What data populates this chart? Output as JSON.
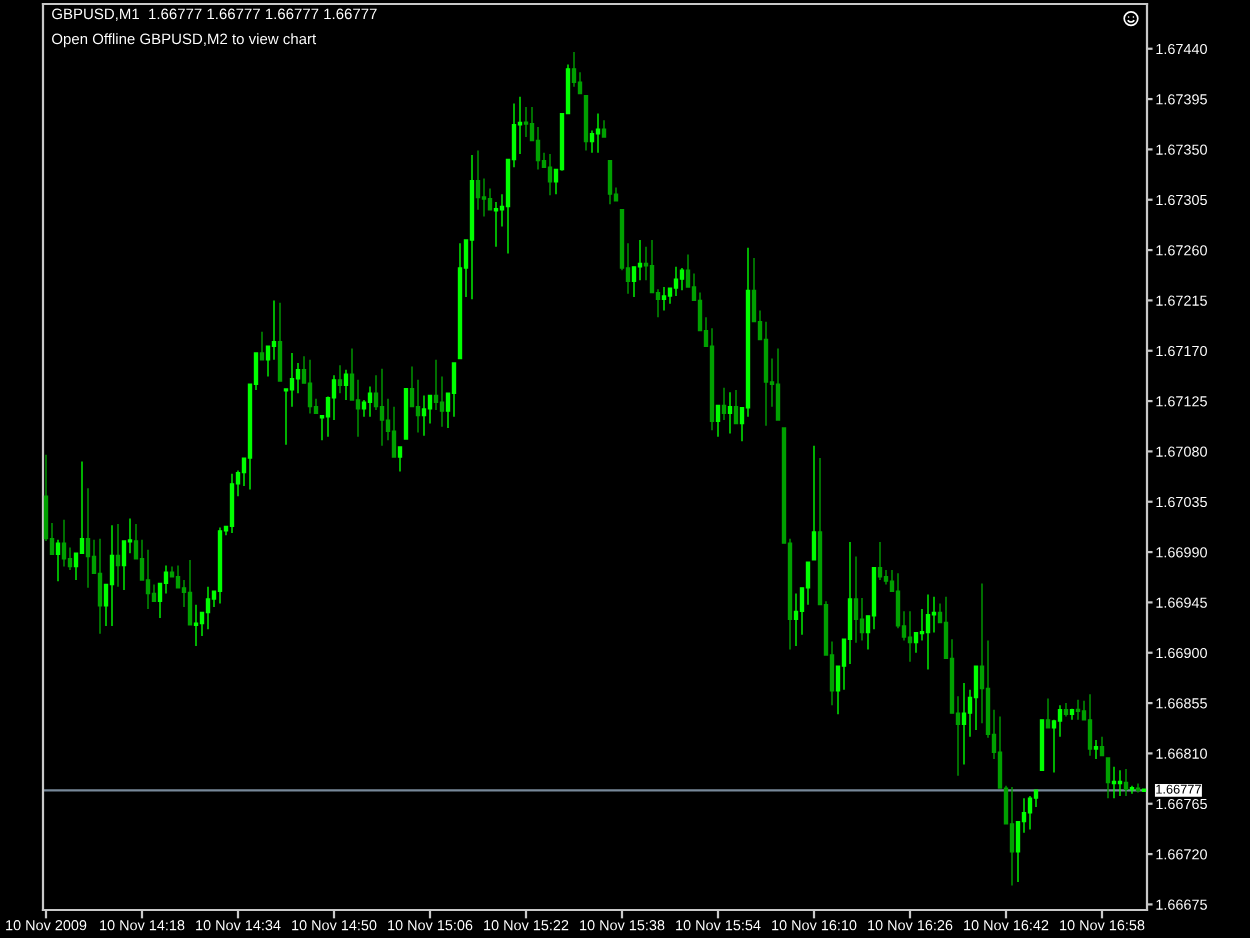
{
  "chart_data": {
    "type": "candlestick",
    "title": "GBPUSD,M1  1.66777 1.66777 1.66777 1.66777",
    "subtitle": "Open Offline GBPUSD,M2 to view chart",
    "categories": [
      "10 Nov 2009",
      null,
      null,
      null,
      null,
      null,
      null,
      null,
      null,
      null,
      null,
      null,
      null,
      null,
      null,
      null,
      "10 Nov 14:18",
      null,
      null,
      null,
      null,
      null,
      null,
      null,
      null,
      null,
      null,
      null,
      null,
      null,
      null,
      null,
      "10 Nov 14:34",
      null,
      null,
      null,
      null,
      null,
      null,
      null,
      null,
      null,
      null,
      null,
      null,
      null,
      null,
      null,
      "10 Nov 14:50",
      null,
      null,
      null,
      null,
      null,
      null,
      null,
      null,
      null,
      null,
      null,
      null,
      null,
      null,
      null,
      "10 Nov 15:06",
      null,
      null,
      null,
      null,
      null,
      null,
      null,
      null,
      null,
      null,
      null,
      null,
      null,
      null,
      null,
      "10 Nov 15:22",
      null,
      null,
      null,
      null,
      null,
      null,
      null,
      null,
      null,
      null,
      null,
      null,
      null,
      null,
      null,
      "10 Nov 15:38",
      null,
      null,
      null,
      null,
      null,
      null,
      null,
      null,
      null,
      null,
      null,
      null,
      null,
      null,
      null,
      "10 Nov 15:54",
      null,
      null,
      null,
      null,
      null,
      null,
      null,
      null,
      null,
      null,
      null,
      null,
      null,
      null,
      null,
      "10 Nov 16:10",
      null,
      null,
      null,
      null,
      null,
      null,
      null,
      null,
      null,
      null,
      null,
      null,
      null,
      null,
      null,
      "10 Nov 16:26",
      null,
      null,
      null,
      null,
      null,
      null,
      null,
      null,
      null,
      null,
      null,
      null,
      null,
      null,
      null,
      "10 Nov 16:42",
      null,
      null,
      null,
      null,
      null,
      null,
      null,
      null,
      null,
      null,
      null,
      null,
      null,
      null,
      null,
      "10 Nov 16:58",
      null,
      null,
      null,
      null,
      null,
      null,
      null
    ],
    "ohlc": [
      [
        1.6704,
        1.67077,
        1.67,
        1.67002
      ],
      [
        1.67002,
        1.67016,
        1.66988,
        1.66988
      ],
      [
        1.66988,
        1.67001,
        1.66964,
        1.66998
      ],
      [
        1.66998,
        1.67019,
        1.66977,
        1.66984
      ],
      [
        1.66984,
        1.66994,
        1.66974,
        1.66977
      ],
      [
        1.66977,
        1.66989,
        1.66965,
        1.66989
      ],
      [
        1.66989,
        1.67071,
        1.66989,
        1.67002
      ],
      [
        1.67002,
        1.67047,
        1.66958,
        1.66986
      ],
      [
        1.66986,
        1.67001,
        1.66971,
        1.66971
      ],
      [
        1.66971,
        1.67002,
        1.66917,
        1.66942
      ],
      [
        1.66942,
        1.66961,
        1.66924,
        1.66961
      ],
      [
        1.66961,
        1.67014,
        1.66924,
        1.66987
      ],
      [
        1.66987,
        1.67015,
        1.66959,
        1.66978
      ],
      [
        1.66978,
        1.67,
        1.66956,
        1.67
      ],
      [
        1.67,
        1.6702,
        1.66989,
        1.67
      ],
      [
        1.67,
        1.67015,
        1.66984,
        1.66984
      ],
      [
        1.66984,
        1.67001,
        1.66965,
        1.66965
      ],
      [
        1.66965,
        1.66992,
        1.66939,
        1.66953
      ],
      [
        1.66953,
        1.66961,
        1.66946,
        1.66946
      ],
      [
        1.66946,
        1.66962,
        1.66931,
        1.66962
      ],
      [
        1.66962,
        1.66978,
        1.66953,
        1.66972
      ],
      [
        1.66972,
        1.66977,
        1.66968,
        1.66968
      ],
      [
        1.66968,
        1.66978,
        1.66958,
        1.66958
      ],
      [
        1.66958,
        1.66965,
        1.66941,
        1.66954
      ],
      [
        1.66954,
        1.66983,
        1.66925,
        1.66925
      ],
      [
        1.66925,
        1.66943,
        1.66906,
        1.66926
      ],
      [
        1.66926,
        1.66936,
        1.66915,
        1.66936
      ],
      [
        1.66936,
        1.66959,
        1.66921,
        1.66948
      ],
      [
        1.66948,
        1.66955,
        1.66941,
        1.66955
      ],
      [
        1.66955,
        1.67012,
        1.66944,
        1.67009
      ],
      [
        1.67009,
        1.67013,
        1.67005,
        1.67013
      ],
      [
        1.67013,
        1.6706,
        1.67007,
        1.67051
      ],
      [
        1.67051,
        1.67063,
        1.6704,
        1.67061
      ],
      [
        1.67061,
        1.67074,
        1.67049,
        1.67074
      ],
      [
        1.67074,
        1.6714,
        1.67046,
        1.6714
      ],
      [
        1.6714,
        1.67168,
        1.67135,
        1.67168
      ],
      [
        1.67168,
        1.67187,
        1.67162,
        1.67162
      ],
      [
        1.67162,
        1.67174,
        1.67147,
        1.67174
      ],
      [
        1.67174,
        1.67215,
        1.67162,
        1.67178
      ],
      [
        1.67178,
        1.67213,
        1.67143,
        1.67143
      ],
      [
        1.67135,
        1.67135,
        1.67086,
        1.67135
      ],
      [
        1.67135,
        1.67168,
        1.6712,
        1.67145
      ],
      [
        1.67145,
        1.67159,
        1.67132,
        1.67153
      ],
      [
        1.67153,
        1.67165,
        1.67141,
        1.67141
      ],
      [
        1.67141,
        1.67162,
        1.67114,
        1.6712
      ],
      [
        1.6712,
        1.67127,
        1.67114,
        1.67114
      ],
      [
        1.67111,
        1.67111,
        1.6709,
        1.67111
      ],
      [
        1.67111,
        1.67129,
        1.67093,
        1.67128
      ],
      [
        1.67128,
        1.67148,
        1.67108,
        1.67144
      ],
      [
        1.67144,
        1.67157,
        1.67132,
        1.67139
      ],
      [
        1.67139,
        1.67153,
        1.67126,
        1.67149
      ],
      [
        1.67149,
        1.67172,
        1.67126,
        1.67126
      ],
      [
        1.67126,
        1.67144,
        1.67093,
        1.67118
      ],
      [
        1.67118,
        1.67126,
        1.67111,
        1.67124
      ],
      [
        1.67124,
        1.67138,
        1.67111,
        1.67132
      ],
      [
        1.67132,
        1.67148,
        1.67117,
        1.6712
      ],
      [
        1.6712,
        1.67154,
        1.67085,
        1.67108
      ],
      [
        1.67108,
        1.67127,
        1.6709,
        1.67098
      ],
      [
        1.67098,
        1.6712,
        1.67075,
        1.67075
      ],
      [
        1.67075,
        1.67084,
        1.67062,
        1.67084
      ],
      [
        1.67091,
        1.67136,
        1.67091,
        1.67136
      ],
      [
        1.67136,
        1.67156,
        1.6712,
        1.6712
      ],
      [
        1.6712,
        1.67144,
        1.67097,
        1.67112
      ],
      [
        1.67112,
        1.6713,
        1.67094,
        1.67118
      ],
      [
        1.67118,
        1.6713,
        1.67105,
        1.6713
      ],
      [
        1.6713,
        1.67162,
        1.67117,
        1.67124
      ],
      [
        1.67124,
        1.67147,
        1.67102,
        1.67116
      ],
      [
        1.67116,
        1.67132,
        1.67101,
        1.67132
      ],
      [
        1.67132,
        1.67159,
        1.67111,
        1.67159
      ],
      [
        1.67163,
        1.67266,
        1.67163,
        1.67244
      ],
      [
        1.67244,
        1.67269,
        1.67218,
        1.67269
      ],
      [
        1.67269,
        1.67345,
        1.67216,
        1.67322
      ],
      [
        1.67322,
        1.67349,
        1.67296,
        1.67307
      ],
      [
        1.67307,
        1.67324,
        1.6729,
        1.67306
      ],
      [
        1.67306,
        1.67315,
        1.67296,
        1.67296
      ],
      [
        1.67296,
        1.67303,
        1.67263,
        1.67296
      ],
      [
        1.67296,
        1.6731,
        1.67281,
        1.67299
      ],
      [
        1.67299,
        1.67341,
        1.67257,
        1.67341
      ],
      [
        1.67341,
        1.67391,
        1.67334,
        1.67372
      ],
      [
        1.67372,
        1.67397,
        1.67346,
        1.67374
      ],
      [
        1.67374,
        1.67388,
        1.67361,
        1.67373
      ],
      [
        1.67373,
        1.67388,
        1.67358,
        1.67358
      ],
      [
        1.67358,
        1.6737,
        1.67332,
        1.6734
      ],
      [
        1.6734,
        1.67347,
        1.67334,
        1.67334
      ],
      [
        1.67334,
        1.67346,
        1.67309,
        1.67321
      ],
      [
        1.67321,
        1.67332,
        1.6731,
        1.67332
      ],
      [
        1.67332,
        1.67382,
        1.67331,
        1.67382
      ],
      [
        1.67382,
        1.67426,
        1.67382,
        1.67422
      ],
      [
        1.67422,
        1.67437,
        1.67406,
        1.6741
      ],
      [
        1.6741,
        1.67419,
        1.674,
        1.674
      ],
      [
        1.67398,
        1.67398,
        1.67349,
        1.67357
      ],
      [
        1.67357,
        1.67367,
        1.67347,
        1.67364
      ],
      [
        1.67364,
        1.67382,
        1.67347,
        1.67368
      ],
      [
        1.67368,
        1.67376,
        1.67361,
        1.67361
      ],
      [
        1.6734,
        1.6734,
        1.67301,
        1.6731
      ],
      [
        1.6731,
        1.67316,
        1.67304,
        1.67304
      ],
      [
        1.67296,
        1.67296,
        1.67242,
        1.67244
      ],
      [
        1.67244,
        1.67266,
        1.67221,
        1.67232
      ],
      [
        1.67232,
        1.67245,
        1.67218,
        1.67245
      ],
      [
        1.67245,
        1.67269,
        1.67233,
        1.67248
      ],
      [
        1.67248,
        1.67263,
        1.67233,
        1.67246
      ],
      [
        1.67246,
        1.67269,
        1.67222,
        1.67222
      ],
      [
        1.67222,
        1.67225,
        1.672,
        1.67216
      ],
      [
        1.67216,
        1.67227,
        1.67206,
        1.67219
      ],
      [
        1.67219,
        1.67226,
        1.67212,
        1.67226
      ],
      [
        1.67226,
        1.67245,
        1.67219,
        1.67234
      ],
      [
        1.67234,
        1.67244,
        1.67224,
        1.67242
      ],
      [
        1.67242,
        1.67256,
        1.67227,
        1.67227
      ],
      [
        1.67227,
        1.67239,
        1.67215,
        1.67215
      ],
      [
        1.67215,
        1.67222,
        1.67188,
        1.67188
      ],
      [
        1.67188,
        1.672,
        1.67174,
        1.67174
      ],
      [
        1.67174,
        1.6719,
        1.67099,
        1.67107
      ],
      [
        1.67107,
        1.67121,
        1.67093,
        1.67121
      ],
      [
        1.67121,
        1.67137,
        1.67108,
        1.67114
      ],
      [
        1.67114,
        1.67133,
        1.67096,
        1.6712
      ],
      [
        1.6712,
        1.67135,
        1.67105,
        1.67105
      ],
      [
        1.67105,
        1.67119,
        1.67089,
        1.67119
      ],
      [
        1.67119,
        1.67262,
        1.67111,
        1.67224
      ],
      [
        1.67224,
        1.67253,
        1.67196,
        1.67196
      ],
      [
        1.67196,
        1.67206,
        1.6718,
        1.6718
      ],
      [
        1.6718,
        1.67196,
        1.67103,
        1.67142
      ],
      [
        1.67142,
        1.67163,
        1.6712,
        1.6714
      ],
      [
        1.6714,
        1.67172,
        1.67108,
        1.67108
      ],
      [
        1.67101,
        1.67101,
        1.66998,
        1.66998
      ],
      [
        1.66998,
        1.67002,
        1.66903,
        1.6693
      ],
      [
        1.6693,
        1.66953,
        1.66906,
        1.66937
      ],
      [
        1.66937,
        1.66958,
        1.66916,
        1.66958
      ],
      [
        1.66958,
        1.66981,
        1.66943,
        1.66981
      ],
      [
        1.66983,
        1.67085,
        1.66983,
        1.67008
      ],
      [
        1.67008,
        1.67074,
        1.66943,
        1.66943
      ],
      [
        1.66943,
        1.66946,
        1.66898,
        1.66898
      ],
      [
        1.66898,
        1.6691,
        1.66853,
        1.66866
      ],
      [
        1.66866,
        1.66888,
        1.66845,
        1.66888
      ],
      [
        1.66888,
        1.66912,
        1.66867,
        1.66912
      ],
      [
        1.66912,
        1.66999,
        1.6689,
        1.66948
      ],
      [
        1.66948,
        1.66986,
        1.66909,
        1.6693
      ],
      [
        1.6693,
        1.66949,
        1.66911,
        1.66918
      ],
      [
        1.66918,
        1.66933,
        1.66903,
        1.66933
      ],
      [
        1.66933,
        1.66976,
        1.66921,
        1.66976
      ],
      [
        1.66976,
        1.66999,
        1.66965,
        1.66968
      ],
      [
        1.66968,
        1.66974,
        1.66961,
        1.66964
      ],
      [
        1.66964,
        1.66974,
        1.66955,
        1.66955
      ],
      [
        1.66955,
        1.66971,
        1.66922,
        1.66924
      ],
      [
        1.66924,
        1.66937,
        1.66911,
        1.66914
      ],
      [
        1.66914,
        1.66937,
        1.66892,
        1.66909
      ],
      [
        1.66909,
        1.66918,
        1.669,
        1.66918
      ],
      [
        1.66918,
        1.66939,
        1.66911,
        1.66918
      ],
      [
        1.66918,
        1.66952,
        1.66885,
        1.66934
      ],
      [
        1.66934,
        1.6695,
        1.66918,
        1.66936
      ],
      [
        1.66936,
        1.66944,
        1.66927,
        1.66927
      ],
      [
        1.66927,
        1.6695,
        1.66895,
        1.66895
      ],
      [
        1.66895,
        1.66912,
        1.66846,
        1.66846
      ],
      [
        1.66846,
        1.66861,
        1.6679,
        1.66836
      ],
      [
        1.66836,
        1.66873,
        1.668,
        1.66846
      ],
      [
        1.66846,
        1.66867,
        1.66825,
        1.6686
      ],
      [
        1.6686,
        1.66888,
        1.66831,
        1.66888
      ],
      [
        1.66888,
        1.66962,
        1.66837,
        1.66868
      ],
      [
        1.66868,
        1.66911,
        1.66824,
        1.66827
      ],
      [
        1.66827,
        1.66849,
        1.66805,
        1.66811
      ],
      [
        1.66811,
        1.66843,
        1.66779,
        1.66779
      ],
      [
        1.66779,
        1.66781,
        1.66747,
        1.66747
      ],
      [
        1.66747,
        1.6678,
        1.66692,
        1.66722
      ],
      [
        1.66722,
        1.66749,
        1.66695,
        1.66749
      ],
      [
        1.66749,
        1.6677,
        1.66739,
        1.66757
      ],
      [
        1.66757,
        1.66772,
        1.66742,
        1.6677
      ],
      [
        1.6677,
        1.66777,
        1.66762,
        1.66777
      ],
      [
        1.66795,
        1.6684,
        1.66795,
        1.6684
      ],
      [
        1.6684,
        1.66859,
        1.66833,
        1.66833
      ],
      [
        1.66833,
        1.6684,
        1.66793,
        1.66839
      ],
      [
        1.66839,
        1.66853,
        1.66825,
        1.66849
      ],
      [
        1.66849,
        1.66855,
        1.66843,
        1.66845
      ],
      [
        1.66845,
        1.6685,
        1.6684,
        1.66849
      ],
      [
        1.66849,
        1.66858,
        1.6684,
        1.66848
      ],
      [
        1.66848,
        1.66857,
        1.6684,
        1.6684
      ],
      [
        1.6684,
        1.66863,
        1.66808,
        1.66814
      ],
      [
        1.66814,
        1.66822,
        1.66805,
        1.66816
      ],
      [
        1.66816,
        1.66825,
        1.66808,
        1.66808
      ],
      [
        1.66806,
        1.66806,
        1.6677,
        1.66784
      ],
      [
        1.66784,
        1.66798,
        1.6677,
        1.66784
      ],
      [
        1.66784,
        1.66795,
        1.66772,
        1.66784
      ],
      [
        1.66784,
        1.66796,
        1.66772,
        1.66778
      ],
      [
        1.66778,
        1.66781,
        1.66774,
        1.66779
      ],
      [
        1.66779,
        1.66783,
        1.66775,
        1.66777
      ],
      [
        1.66777,
        1.66777,
        1.66777,
        1.66777
      ]
    ],
    "colors": [
      "#00a000",
      "#00a000",
      "#00ff00",
      "#00a000",
      "#00a000",
      "#00ff00",
      "#00ff00",
      "#00a000",
      "#00a000",
      "#00a000",
      "#00ff00",
      "#00ff00",
      "#00a000",
      "#00ff00",
      "#00ff00",
      "#00a000",
      "#00a000",
      "#00a000",
      "#00a000",
      "#00ff00",
      "#00ff00",
      "#00a000",
      "#00a000",
      "#00a000",
      "#00a000",
      "#00ff00",
      "#00ff00",
      "#00ff00",
      "#00ff00",
      "#00ff00",
      "#00ff00",
      "#00ff00",
      "#00ff00",
      "#00ff00",
      "#00ff00",
      "#00ff00",
      "#00a000",
      "#00ff00",
      "#00ff00",
      "#00a000",
      "#00ff00",
      "#00ff00",
      "#00ff00",
      "#00a000",
      "#00a000",
      "#00a000",
      "#00ff00",
      "#00ff00",
      "#00ff00",
      "#00a000",
      "#00ff00",
      "#00a000",
      "#00a000",
      "#00ff00",
      "#00ff00",
      "#00a000",
      "#00a000",
      "#00a000",
      "#00a000",
      "#00ff00",
      "#00ff00",
      "#00a000",
      "#00a000",
      "#00ff00",
      "#00ff00",
      "#00a000",
      "#00a000",
      "#00ff00",
      "#00ff00",
      "#00ff00",
      "#00ff00",
      "#00ff00",
      "#00a000",
      "#00a000",
      "#00a000",
      "#00ff00",
      "#00ff00",
      "#00ff00",
      "#00ff00",
      "#00ff00",
      "#00a000",
      "#00a000",
      "#00a000",
      "#00a000",
      "#00a000",
      "#00ff00",
      "#00ff00",
      "#00ff00",
      "#00a000",
      "#00a000",
      "#00a000",
      "#00ff00",
      "#00ff00",
      "#00a000",
      "#00a000",
      "#00a000",
      "#00a000",
      "#00a000",
      "#00ff00",
      "#00ff00",
      "#00a000",
      "#00a000",
      "#00a000",
      "#00ff00",
      "#00ff00",
      "#00ff00",
      "#00ff00",
      "#00a000",
      "#00a000",
      "#00a000",
      "#00a000",
      "#00a000",
      "#00ff00",
      "#00a000",
      "#00ff00",
      "#00a000",
      "#00ff00",
      "#00ff00",
      "#00a000",
      "#00a000",
      "#00a000",
      "#00a000",
      "#00a000",
      "#00a000",
      "#00a000",
      "#00ff00",
      "#00ff00",
      "#00ff00",
      "#00ff00",
      "#00a000",
      "#00a000",
      "#00a000",
      "#00ff00",
      "#00ff00",
      "#00ff00",
      "#00a000",
      "#00a000",
      "#00ff00",
      "#00ff00",
      "#00a000",
      "#00a000",
      "#00a000",
      "#00a000",
      "#00a000",
      "#00a000",
      "#00ff00",
      "#00ff00",
      "#00ff00",
      "#00ff00",
      "#00a000",
      "#00a000",
      "#00a000",
      "#00a000",
      "#00ff00",
      "#00ff00",
      "#00ff00",
      "#00a000",
      "#00a000",
      "#00a000",
      "#00a000",
      "#00a000",
      "#00a000",
      "#00ff00",
      "#00ff00",
      "#00ff00",
      "#00ff00",
      "#00ff00",
      "#00a000",
      "#00ff00",
      "#00ff00",
      "#00a000",
      "#00ff00",
      "#00a000",
      "#00a000",
      "#00a000",
      "#00ff00",
      "#00a000",
      "#00a000",
      "#00ff00",
      "#00ff00",
      "#00a000",
      "#00ff00",
      "#00a000",
      "#00ff00"
    ],
    "ylim": [
      1.6667,
      1.6748
    ],
    "yticks": [
      1.66675,
      {
        "value": 1.6672,
        "label": "1.66720"
      },
      1.66765,
      {
        "value": 1.6681,
        "label": "1.66810"
      },
      1.66855,
      {
        "value": 1.669,
        "label": "1.66900"
      },
      1.66945,
      {
        "value": 1.6699,
        "label": "1.66990"
      },
      1.67035,
      {
        "value": 1.6708,
        "label": "1.67080"
      },
      1.67125,
      {
        "value": 1.6717,
        "label": "1.67170"
      },
      1.67215,
      {
        "value": 1.6726,
        "label": "1.67260"
      },
      1.67305,
      {
        "value": 1.6735,
        "label": "1.67350"
      },
      1.67395,
      {
        "value": 1.6744,
        "label": "1.67440"
      }
    ],
    "ref_lines": [
      {
        "axis": "y",
        "value": 1.66777,
        "label": "1.66777",
        "color": "#778899"
      }
    ]
  }
}
